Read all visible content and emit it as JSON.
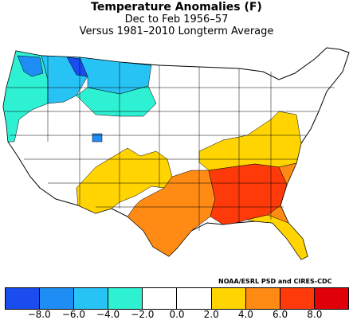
{
  "title": "Temperature Anomalies (F)",
  "subtitle": "Dec to Feb 1956–57",
  "comparison": "Versus 1981–2010 Longterm Average",
  "credit": "NOAA/ESRL PSD and CIRES-CDC",
  "legend": {
    "colors": [
      "#1a4cf0",
      "#1e8ef5",
      "#27c3f5",
      "#2ef0d2",
      "#ffffff",
      "#ffffff",
      "#ffd400",
      "#ff8a14",
      "#ff3a0a",
      "#e0000a"
    ],
    "tick_labels": [
      "−8.0",
      "−6.0",
      "−4.0",
      "−2.0",
      "0.0",
      "2.0",
      "4.0",
      "6.0",
      "8.0"
    ]
  },
  "regions": [
    {
      "name": "northwest-coast",
      "color": "#2ef0d2"
    },
    {
      "name": "washington-cold-core",
      "color": "#1e8ef5"
    },
    {
      "name": "northern-rockies",
      "color": "#27c3f5"
    },
    {
      "name": "montana-cold-core",
      "color": "#1a4cf0"
    },
    {
      "name": "northern-plains",
      "color": "#27c3f5"
    },
    {
      "name": "north-dakota-minnesota",
      "color": "#2ef0d2"
    },
    {
      "name": "utah-spot",
      "color": "#1e8ef5"
    },
    {
      "name": "southwest",
      "color": "#ffd400"
    },
    {
      "name": "texas-gulf",
      "color": "#ff8a14"
    },
    {
      "name": "ohio-valley",
      "color": "#ffd400"
    },
    {
      "name": "southeast-core",
      "color": "#ff3a0a"
    },
    {
      "name": "carolinas",
      "color": "#ff8a14"
    },
    {
      "name": "florida",
      "color": "#ffd400"
    }
  ]
}
